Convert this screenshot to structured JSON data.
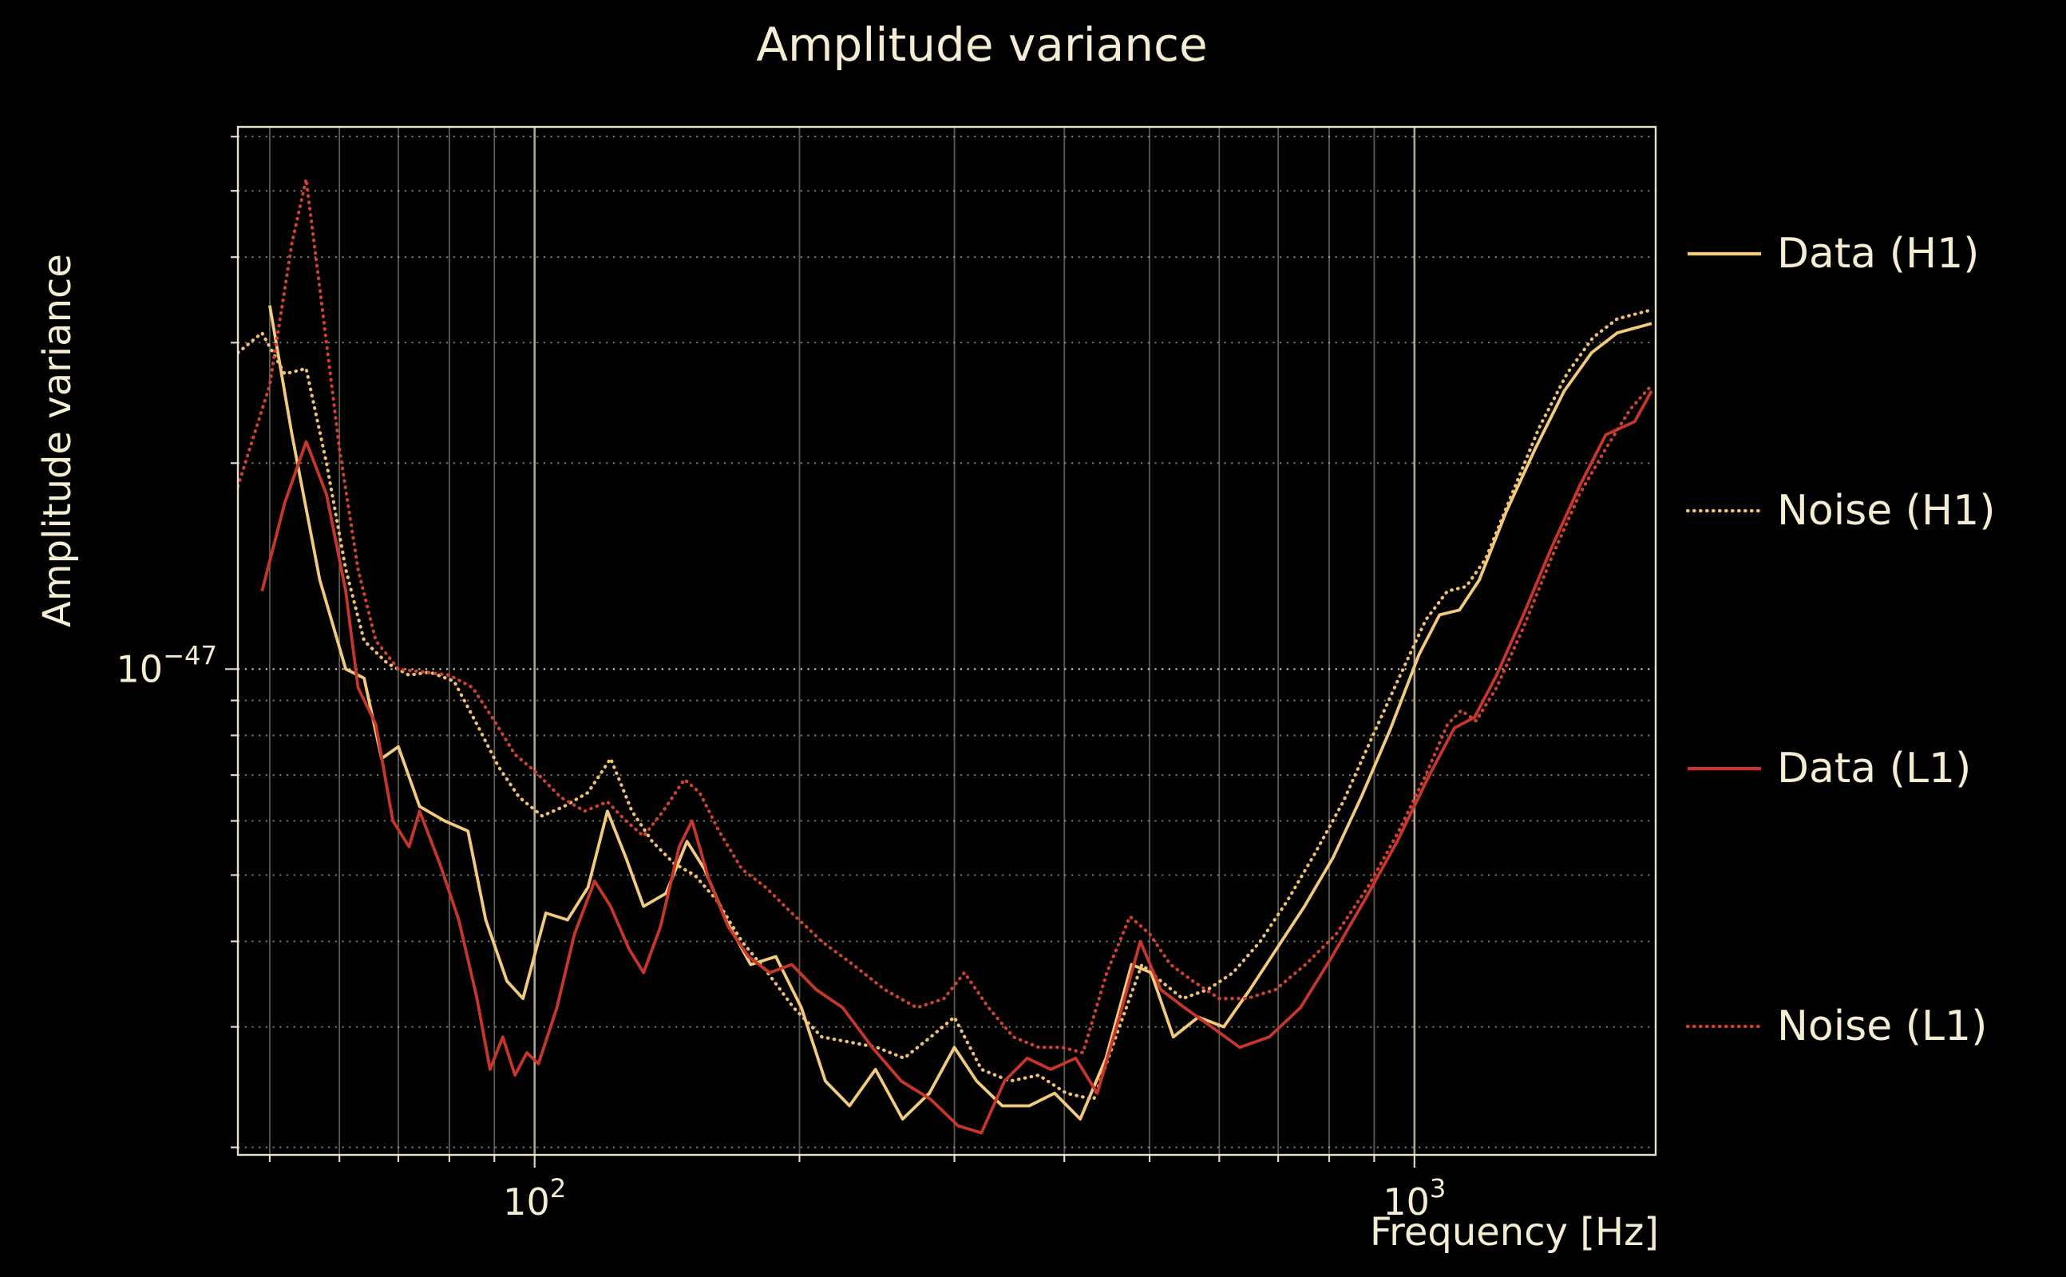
{
  "title": "Amplitude variance",
  "axes": {
    "xlabel": "Frequency [Hz]",
    "ylabel": "Amplitude variance",
    "xticks": [
      {
        "base": "10",
        "sup": "2",
        "value": 100
      },
      {
        "base": "10",
        "sup": "3",
        "value": 1000
      }
    ],
    "yticks": [
      {
        "base": "10",
        "sup": "−47",
        "value": 1e-47
      }
    ]
  },
  "colors": {
    "background": "#000000",
    "text": "#f5ecd4",
    "grid": "#f5ecd4",
    "data_h1": "#f2ca7e",
    "noise_h1": "#eec26f",
    "data_l1": "#c6362a",
    "noise_l1": "#cf4130"
  },
  "chart_data": {
    "type": "line",
    "title": "Amplitude variance",
    "xlabel": "Frequency [Hz]",
    "ylabel": "Amplitude variance",
    "xscale": "log",
    "yscale": "log",
    "xlim": [
      46,
      1880
    ],
    "ylim": [
      1.95e-48,
      6.2e-47
    ],
    "grid": true,
    "legend_position": "right-outside",
    "series": [
      {
        "name": "Data (H1)",
        "color": "#f2ca7e",
        "linestyle": "solid",
        "points": [
          [
            50,
            3.4e-47
          ],
          [
            53,
            2.2e-47
          ],
          [
            57,
            1.35e-47
          ],
          [
            61,
            1e-47
          ],
          [
            64,
            9.7e-48
          ],
          [
            67,
            7.4e-48
          ],
          [
            70,
            7.7e-48
          ],
          [
            74,
            6.3e-48
          ],
          [
            79,
            6e-48
          ],
          [
            84,
            5.8e-48
          ],
          [
            88,
            4.3e-48
          ],
          [
            93,
            3.5e-48
          ],
          [
            97,
            3.3e-48
          ],
          [
            103,
            4.4e-48
          ],
          [
            109,
            4.3e-48
          ],
          [
            115,
            4.8e-48
          ],
          [
            121,
            6.2e-48
          ],
          [
            127,
            5.3e-48
          ],
          [
            133,
            4.5e-48
          ],
          [
            141,
            4.7e-48
          ],
          [
            149,
            5.6e-48
          ],
          [
            156,
            5.1e-48
          ],
          [
            165,
            4.3e-48
          ],
          [
            176,
            3.7e-48
          ],
          [
            188,
            3.8e-48
          ],
          [
            201,
            3.2e-48
          ],
          [
            214,
            2.5e-48
          ],
          [
            228,
            2.3e-48
          ],
          [
            244,
            2.6e-48
          ],
          [
            262,
            2.2e-48
          ],
          [
            281,
            2.4e-48
          ],
          [
            300,
            2.8e-48
          ],
          [
            318,
            2.5e-48
          ],
          [
            340,
            2.3e-48
          ],
          [
            365,
            2.3e-48
          ],
          [
            390,
            2.4e-48
          ],
          [
            417,
            2.2e-48
          ],
          [
            446,
            2.7e-48
          ],
          [
            477,
            3.7e-48
          ],
          [
            502,
            3.6e-48
          ],
          [
            532,
            2.9e-48
          ],
          [
            568,
            3.1e-48
          ],
          [
            607,
            3e-48
          ],
          [
            650,
            3.4e-48
          ],
          [
            697,
            3.9e-48
          ],
          [
            750,
            4.5e-48
          ],
          [
            808,
            5.3e-48
          ],
          [
            870,
            6.5e-48
          ],
          [
            940,
            8.2e-48
          ],
          [
            1012,
            1.05e-47
          ],
          [
            1068,
            1.2e-47
          ],
          [
            1125,
            1.22e-47
          ],
          [
            1185,
            1.35e-47
          ],
          [
            1272,
            1.7e-47
          ],
          [
            1372,
            2.1e-47
          ],
          [
            1480,
            2.55e-47
          ],
          [
            1590,
            2.9e-47
          ],
          [
            1700,
            3.1e-47
          ],
          [
            1860,
            3.2e-47
          ]
        ]
      },
      {
        "name": "Noise (H1)",
        "color": "#eec26f",
        "linestyle": "dotted",
        "points": [
          [
            46,
            2.9e-47
          ],
          [
            49,
            3.1e-47
          ],
          [
            52,
            2.7e-47
          ],
          [
            55,
            2.75e-47
          ],
          [
            58,
            2e-47
          ],
          [
            61,
            1.4e-47
          ],
          [
            64,
            1.1e-47
          ],
          [
            68,
            1.02e-47
          ],
          [
            72,
            9.8e-48
          ],
          [
            76,
            9.9e-48
          ],
          [
            81,
            9.6e-48
          ],
          [
            86,
            8.3e-48
          ],
          [
            91,
            7.2e-48
          ],
          [
            96,
            6.5e-48
          ],
          [
            102,
            6.1e-48
          ],
          [
            108,
            6.3e-48
          ],
          [
            115,
            6.6e-48
          ],
          [
            122,
            7.4e-48
          ],
          [
            129,
            6.2e-48
          ],
          [
            136,
            5.6e-48
          ],
          [
            144,
            5.2e-48
          ],
          [
            152,
            5e-48
          ],
          [
            161,
            4.6e-48
          ],
          [
            172,
            4e-48
          ],
          [
            184,
            3.6e-48
          ],
          [
            197,
            3.2e-48
          ],
          [
            212,
            2.9e-48
          ],
          [
            228,
            2.85e-48
          ],
          [
            245,
            2.8e-48
          ],
          [
            263,
            2.7e-48
          ],
          [
            282,
            2.9e-48
          ],
          [
            300,
            3.1e-48
          ],
          [
            322,
            2.6e-48
          ],
          [
            347,
            2.5e-48
          ],
          [
            374,
            2.55e-48
          ],
          [
            402,
            2.4e-48
          ],
          [
            432,
            2.35e-48
          ],
          [
            462,
            3e-48
          ],
          [
            490,
            3.7e-48
          ],
          [
            515,
            3.5e-48
          ],
          [
            545,
            3.3e-48
          ],
          [
            582,
            3.4e-48
          ],
          [
            622,
            3.6e-48
          ],
          [
            668,
            4e-48
          ],
          [
            718,
            4.6e-48
          ],
          [
            772,
            5.4e-48
          ],
          [
            830,
            6.4e-48
          ],
          [
            893,
            7.9e-48
          ],
          [
            960,
            9.7e-48
          ],
          [
            1030,
            1.18e-47
          ],
          [
            1090,
            1.3e-47
          ],
          [
            1145,
            1.32e-47
          ],
          [
            1205,
            1.45e-47
          ],
          [
            1290,
            1.8e-47
          ],
          [
            1385,
            2.25e-47
          ],
          [
            1490,
            2.7e-47
          ],
          [
            1595,
            3.05e-47
          ],
          [
            1700,
            3.25e-47
          ],
          [
            1860,
            3.35e-47
          ]
        ]
      },
      {
        "name": "Data (L1)",
        "color": "#c6362a",
        "linestyle": "solid",
        "points": [
          [
            49,
            1.3e-47
          ],
          [
            52,
            1.75e-47
          ],
          [
            55,
            2.15e-47
          ],
          [
            58,
            1.8e-47
          ],
          [
            61,
            1.3e-47
          ],
          [
            63,
            9.4e-48
          ],
          [
            66,
            8.3e-48
          ],
          [
            69,
            6e-48
          ],
          [
            72,
            5.5e-48
          ],
          [
            74,
            6.2e-48
          ],
          [
            78,
            5.2e-48
          ],
          [
            82,
            4.3e-48
          ],
          [
            86,
            3.3e-48
          ],
          [
            89,
            2.6e-48
          ],
          [
            92,
            2.9e-48
          ],
          [
            95,
            2.55e-48
          ],
          [
            98,
            2.75e-48
          ],
          [
            101,
            2.65e-48
          ],
          [
            106,
            3.2e-48
          ],
          [
            111,
            4.1e-48
          ],
          [
            117,
            4.9e-48
          ],
          [
            122,
            4.5e-48
          ],
          [
            128,
            3.9e-48
          ],
          [
            133,
            3.6e-48
          ],
          [
            139,
            4.2e-48
          ],
          [
            146,
            5.5e-48
          ],
          [
            151,
            6e-48
          ],
          [
            158,
            4.9e-48
          ],
          [
            166,
            4.2e-48
          ],
          [
            175,
            3.8e-48
          ],
          [
            185,
            3.6e-48
          ],
          [
            196,
            3.7e-48
          ],
          [
            209,
            3.4e-48
          ],
          [
            224,
            3.2e-48
          ],
          [
            242,
            2.8e-48
          ],
          [
            261,
            2.5e-48
          ],
          [
            282,
            2.35e-48
          ],
          [
            303,
            2.15e-48
          ],
          [
            322,
            2.1e-48
          ],
          [
            342,
            2.5e-48
          ],
          [
            363,
            2.7e-48
          ],
          [
            386,
            2.6e-48
          ],
          [
            412,
            2.7e-48
          ],
          [
            436,
            2.4e-48
          ],
          [
            462,
            3.1e-48
          ],
          [
            488,
            4e-48
          ],
          [
            515,
            3.4e-48
          ],
          [
            548,
            3.2e-48
          ],
          [
            588,
            3e-48
          ],
          [
            633,
            2.8e-48
          ],
          [
            684,
            2.9e-48
          ],
          [
            742,
            3.2e-48
          ],
          [
            806,
            3.8e-48
          ],
          [
            878,
            4.6e-48
          ],
          [
            956,
            5.6e-48
          ],
          [
            1040,
            7e-48
          ],
          [
            1110,
            8.2e-48
          ],
          [
            1170,
            8.5e-48
          ],
          [
            1240,
            9.8e-48
          ],
          [
            1330,
            1.2e-47
          ],
          [
            1430,
            1.5e-47
          ],
          [
            1540,
            1.85e-47
          ],
          [
            1650,
            2.2e-47
          ],
          [
            1780,
            2.3e-47
          ],
          [
            1860,
            2.55e-47
          ]
        ]
      },
      {
        "name": "Noise (L1)",
        "color": "#cf4130",
        "linestyle": "dotted",
        "points": [
          [
            46,
            1.85e-47
          ],
          [
            50,
            2.6e-47
          ],
          [
            53,
            4.2e-47
          ],
          [
            55,
            5.2e-47
          ],
          [
            57,
            3.6e-47
          ],
          [
            60,
            2.1e-47
          ],
          [
            63,
            1.4e-47
          ],
          [
            66,
            1.1e-47
          ],
          [
            70,
            1e-47
          ],
          [
            75,
            9.9e-48
          ],
          [
            80,
            9.8e-48
          ],
          [
            85,
            9.4e-48
          ],
          [
            90,
            8.4e-48
          ],
          [
            95,
            7.5e-48
          ],
          [
            100,
            7.1e-48
          ],
          [
            107,
            6.5e-48
          ],
          [
            114,
            6.2e-48
          ],
          [
            121,
            6.4e-48
          ],
          [
            127,
            6e-48
          ],
          [
            133,
            5.7e-48
          ],
          [
            140,
            6.2e-48
          ],
          [
            148,
            6.9e-48
          ],
          [
            154,
            6.6e-48
          ],
          [
            162,
            5.8e-48
          ],
          [
            172,
            5.1e-48
          ],
          [
            183,
            4.8e-48
          ],
          [
            196,
            4.4e-48
          ],
          [
            212,
            4e-48
          ],
          [
            230,
            3.7e-48
          ],
          [
            250,
            3.4e-48
          ],
          [
            272,
            3.2e-48
          ],
          [
            292,
            3.3e-48
          ],
          [
            308,
            3.6e-48
          ],
          [
            328,
            3.2e-48
          ],
          [
            350,
            2.9e-48
          ],
          [
            374,
            2.8e-48
          ],
          [
            398,
            2.8e-48
          ],
          [
            420,
            2.75e-48
          ],
          [
            447,
            3.6e-48
          ],
          [
            475,
            4.35e-48
          ],
          [
            500,
            4.1e-48
          ],
          [
            528,
            3.7e-48
          ],
          [
            560,
            3.5e-48
          ],
          [
            600,
            3.3e-48
          ],
          [
            645,
            3.3e-48
          ],
          [
            695,
            3.4e-48
          ],
          [
            752,
            3.7e-48
          ],
          [
            815,
            4.1e-48
          ],
          [
            885,
            4.8e-48
          ],
          [
            960,
            5.8e-48
          ],
          [
            1030,
            7e-48
          ],
          [
            1090,
            8.3e-48
          ],
          [
            1130,
            8.7e-48
          ],
          [
            1175,
            8.4e-48
          ],
          [
            1240,
            9.4e-48
          ],
          [
            1330,
            1.15e-47
          ],
          [
            1430,
            1.45e-47
          ],
          [
            1540,
            1.8e-47
          ],
          [
            1650,
            2.1e-47
          ],
          [
            1760,
            2.4e-47
          ],
          [
            1860,
            2.6e-47
          ]
        ]
      }
    ]
  }
}
